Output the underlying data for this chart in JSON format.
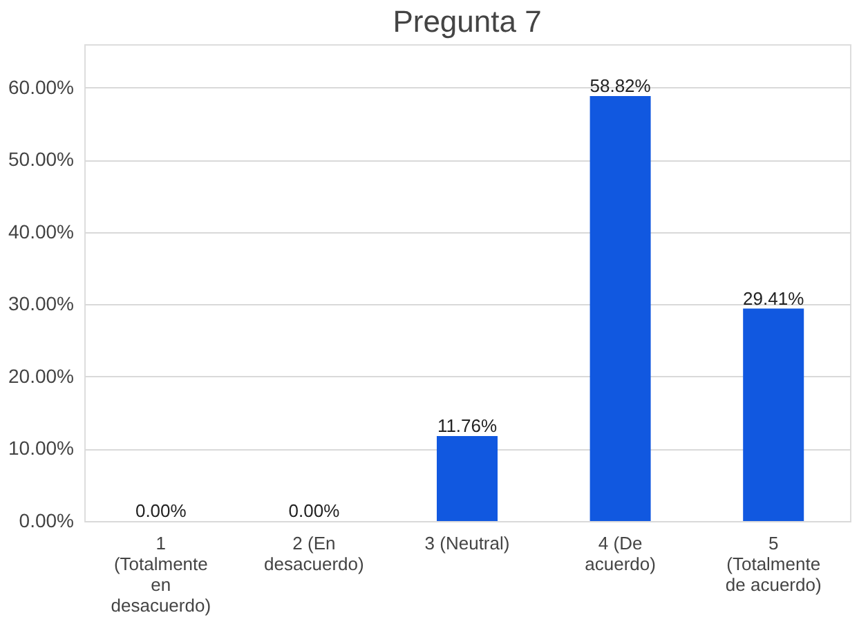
{
  "chart_data": {
    "type": "bar",
    "title": "Pregunta 7",
    "categories": [
      "1 (Totalmente en desacuerdo)",
      "2 (En desacuerdo)",
      "3 (Neutral)",
      "4 (De acuerdo)",
      "5 (Totalmente de acuerdo)"
    ],
    "values": [
      0,
      0,
      11.76,
      58.82,
      29.41
    ],
    "value_labels": [
      "0.00%",
      "0.00%",
      "11.76%",
      "58.82%",
      "29.41%"
    ],
    "color": "#1158e0",
    "ylim": [
      0,
      66
    ],
    "yticks": [
      {
        "value": 0,
        "label": "0.00%"
      },
      {
        "value": 10,
        "label": "10.00%"
      },
      {
        "value": 20,
        "label": "20.00%"
      },
      {
        "value": 30,
        "label": "30.00%"
      },
      {
        "value": 40,
        "label": "40.00%"
      },
      {
        "value": 50,
        "label": "50.00%"
      },
      {
        "value": 60,
        "label": "60.00%"
      }
    ],
    "grid": "y"
  }
}
